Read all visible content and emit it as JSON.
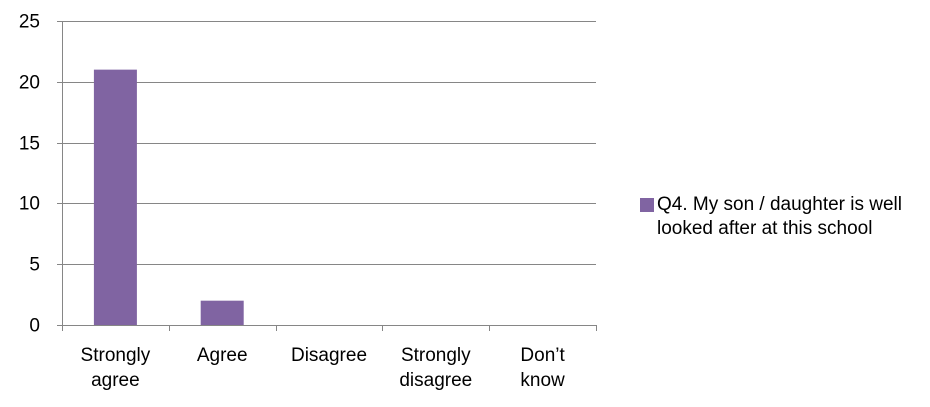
{
  "chart_data": {
    "type": "bar",
    "categories": [
      "Strongly agree",
      "Agree",
      "Disagree",
      "Strongly disagree",
      "Don’t know"
    ],
    "category_label_lines": [
      [
        "Strongly",
        "agree"
      ],
      [
        "Agree"
      ],
      [
        "Disagree"
      ],
      [
        "Strongly",
        "disagree"
      ],
      [
        "Don’t",
        "know"
      ]
    ],
    "series": [
      {
        "name": "Q4. My son / daughter is well looked after at this school",
        "values": [
          21,
          2,
          0,
          0,
          0
        ],
        "color": "#8064A2"
      }
    ],
    "y_ticks": [
      "0",
      "5",
      "10",
      "15",
      "20",
      "25"
    ],
    "ylim": [
      0,
      25
    ],
    "grid": true,
    "legend_position": "right",
    "gridline_color": "#868686"
  }
}
